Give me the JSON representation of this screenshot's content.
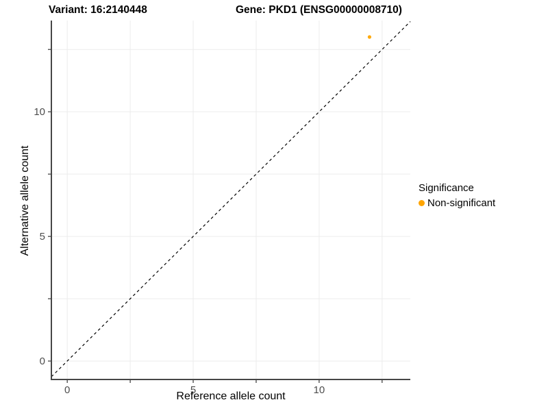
{
  "titles": {
    "left": "Variant: 16:2140448",
    "right": "Gene: PKD1 (ENSG00000008710)"
  },
  "chart_data": {
    "type": "scatter",
    "xlabel": "Reference allele count",
    "ylabel": "Alternative allele count",
    "xlim": [
      -0.63,
      13.62
    ],
    "ylim": [
      -0.74,
      13.66
    ],
    "x_ticks": {
      "values": [
        0,
        2.5,
        5,
        7.5,
        10,
        12.5
      ],
      "labels": [
        "0",
        "",
        "5",
        "",
        "10",
        ""
      ]
    },
    "y_ticks": {
      "values": [
        0,
        2.5,
        5,
        7.5,
        10,
        12.5
      ],
      "labels": [
        "0",
        "",
        "5",
        "",
        "10",
        ""
      ]
    },
    "grid": {
      "show": true,
      "color": "#ececec"
    },
    "identity_line": {
      "show": true,
      "style": "dashed",
      "color": "#000000"
    },
    "points": [
      {
        "x": 12,
        "y": 13,
        "series": "Non-significant"
      }
    ],
    "legend": {
      "position": "right",
      "title": "Significance",
      "items": [
        {
          "label": "Non-significant",
          "color": "#FFA500"
        }
      ]
    },
    "style_colors": {
      "axis_line": "#464646",
      "tick_mark": "#333333",
      "tick_label": "#4d4d4d",
      "background": "#ffffff"
    }
  }
}
